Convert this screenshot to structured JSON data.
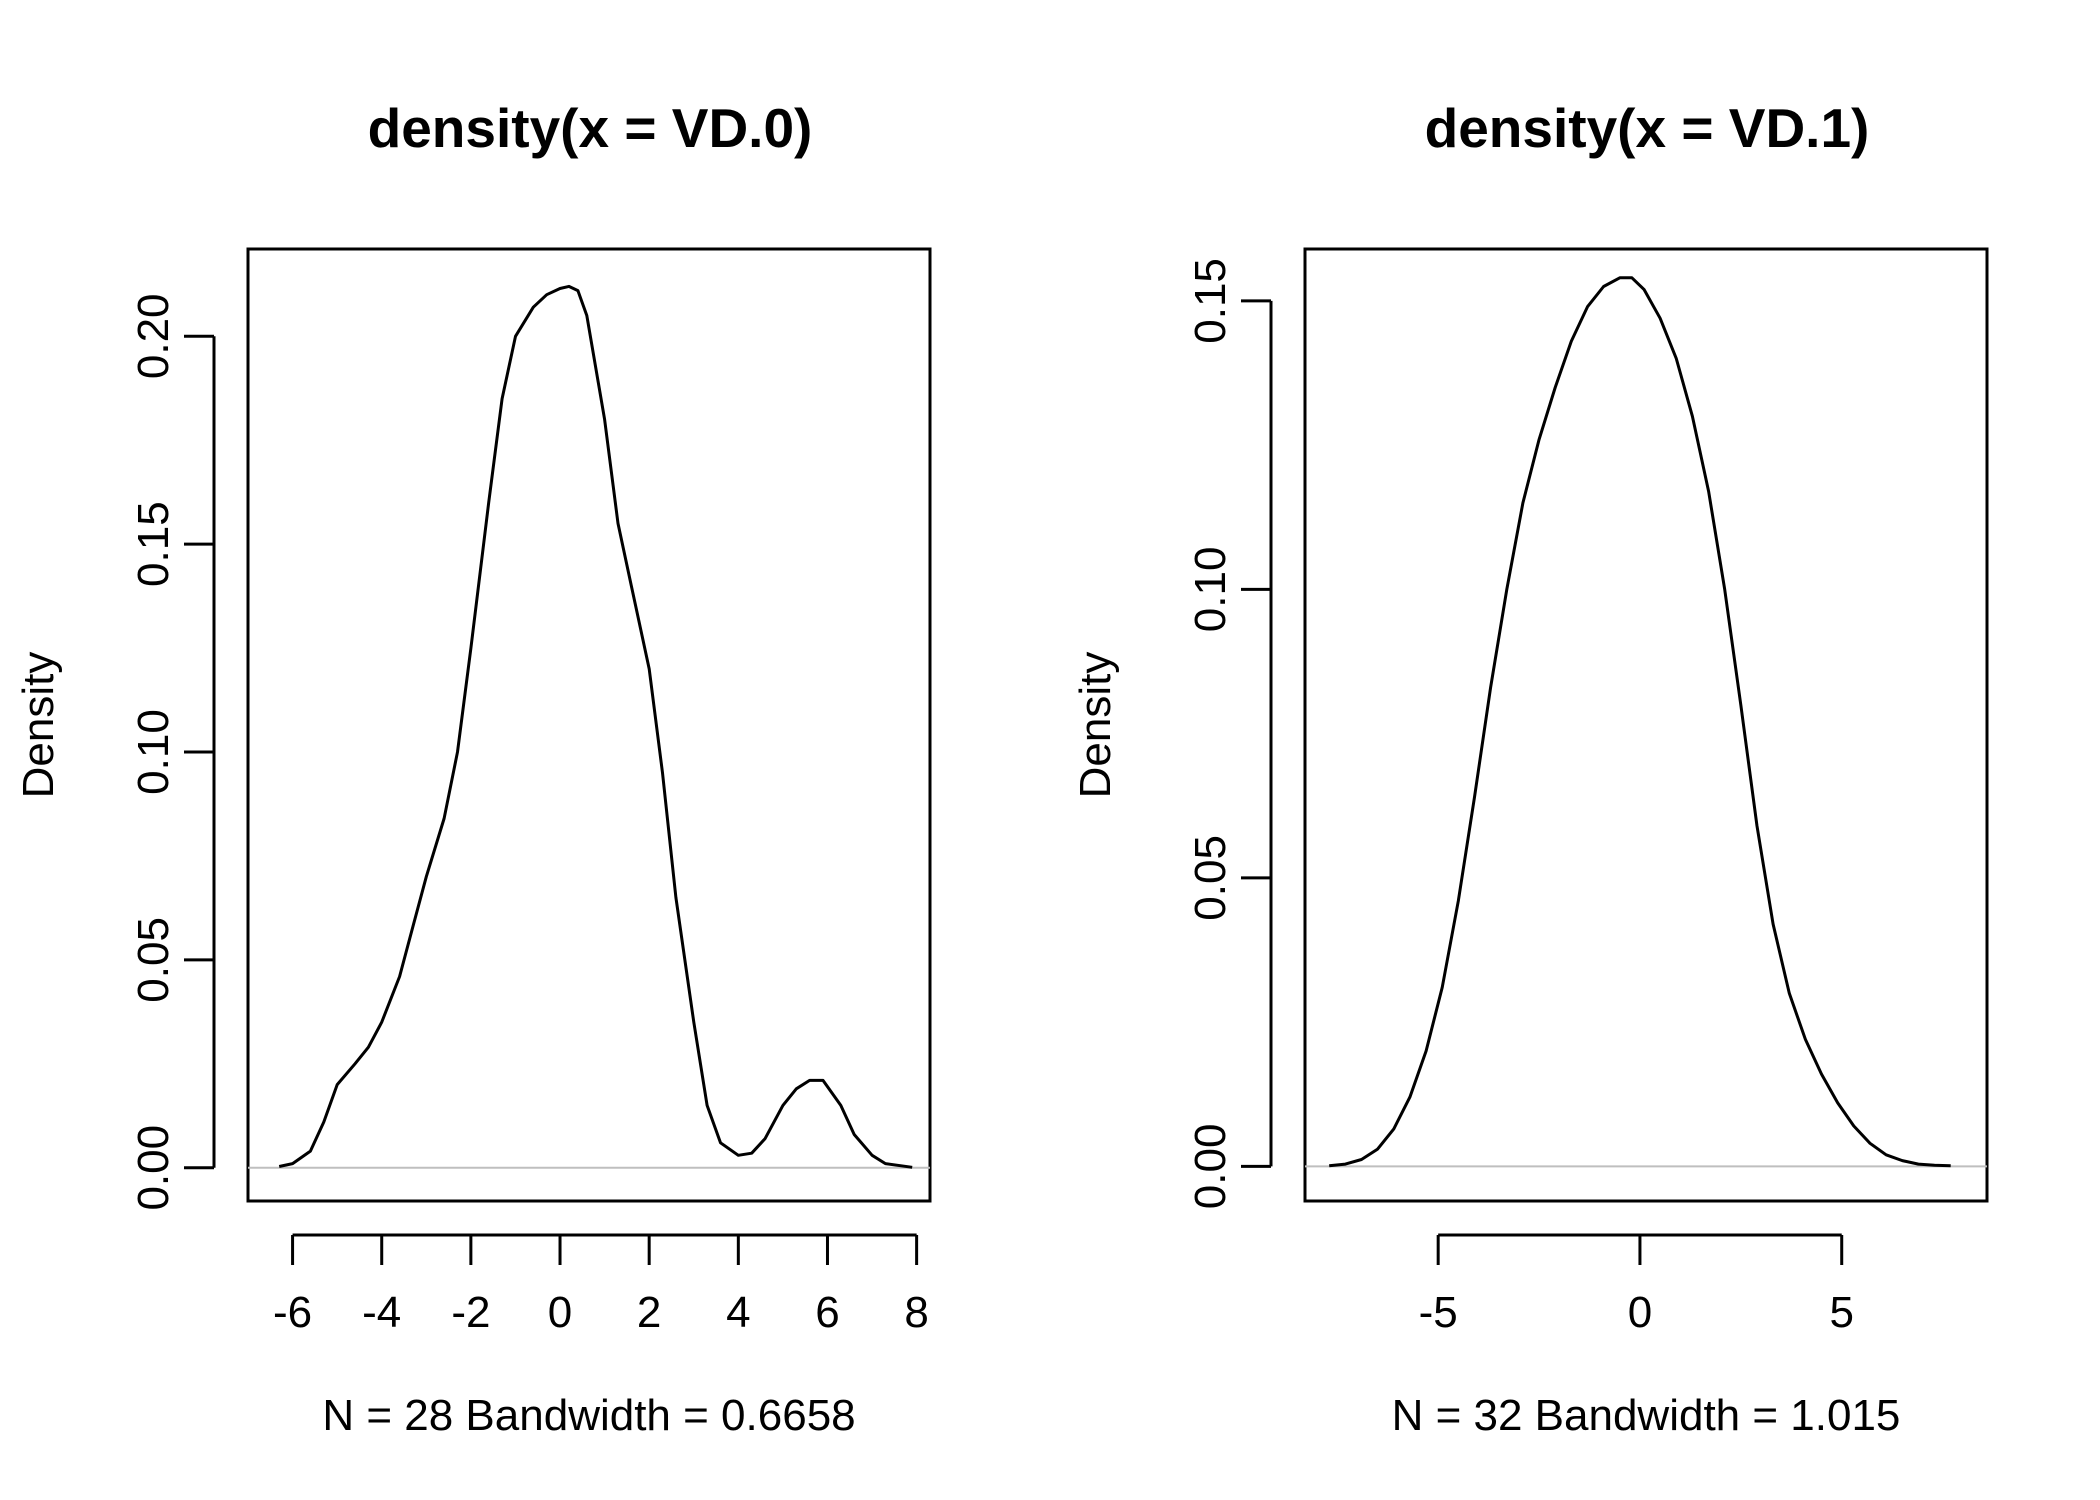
{
  "chart_data": [
    {
      "type": "line",
      "title": "density(x = VD.0)",
      "xlabel": "N = 28   Bandwidth = 0.6658",
      "ylabel": "Density",
      "xlim": [
        -7.0,
        8.3
      ],
      "ylim": [
        -0.008,
        0.221
      ],
      "xticks": [
        -6,
        -4,
        -2,
        0,
        2,
        4,
        6,
        8
      ],
      "xtick_labels": [
        "-6",
        "-4",
        "-2",
        "0",
        "2",
        "4",
        "6",
        "8"
      ],
      "yticks": [
        0.0,
        0.05,
        0.1,
        0.15,
        0.2
      ],
      "ytick_labels": [
        "0.00",
        "0.05",
        "0.10",
        "0.15",
        "0.20"
      ],
      "zero_line": true,
      "grid": false,
      "series": [
        {
          "x": [
            -6.3,
            -6.0,
            -5.6,
            -5.3,
            -5.0,
            -4.6,
            -4.3,
            -4.0,
            -3.6,
            -3.3,
            -3.0,
            -2.6,
            -2.3,
            -2.0,
            -1.6,
            -1.3,
            -1.0,
            -0.6,
            -0.3,
            0.0,
            0.2,
            0.4,
            0.6,
            1.0,
            1.3,
            1.6,
            2.0,
            2.3,
            2.6,
            3.0,
            3.3,
            3.6,
            4.0,
            4.3,
            4.6,
            5.0,
            5.3,
            5.6,
            5.9,
            6.3,
            6.6,
            7.0,
            7.3,
            7.9
          ],
          "y": [
            0.0003,
            0.001,
            0.004,
            0.011,
            0.02,
            0.025,
            0.029,
            0.035,
            0.046,
            0.058,
            0.07,
            0.084,
            0.1,
            0.125,
            0.16,
            0.185,
            0.2,
            0.207,
            0.21,
            0.2115,
            0.212,
            0.211,
            0.205,
            0.18,
            0.155,
            0.14,
            0.12,
            0.095,
            0.065,
            0.035,
            0.015,
            0.006,
            0.003,
            0.0035,
            0.007,
            0.015,
            0.019,
            0.021,
            0.021,
            0.015,
            0.008,
            0.003,
            0.001,
            0.0001
          ]
        }
      ]
    },
    {
      "type": "line",
      "title": "density(x = VD.1)",
      "xlabel": "N = 32   Bandwidth = 1.015",
      "ylabel": "Density",
      "xlim": [
        -8.3,
        8.6
      ],
      "ylim": [
        -0.006,
        0.159
      ],
      "xticks": [
        -5,
        0,
        5
      ],
      "xtick_labels": [
        "-5",
        "0",
        "5"
      ],
      "yticks": [
        0.0,
        0.05,
        0.1,
        0.15
      ],
      "ytick_labels": [
        "0.00",
        "0.05",
        "0.10",
        "0.15"
      ],
      "zero_line": true,
      "grid": false,
      "series": [
        {
          "x": [
            -7.7,
            -7.3,
            -6.9,
            -6.5,
            -6.1,
            -5.7,
            -5.3,
            -4.9,
            -4.5,
            -4.1,
            -3.7,
            -3.3,
            -2.9,
            -2.5,
            -2.1,
            -1.7,
            -1.3,
            -0.9,
            -0.5,
            -0.2,
            0.1,
            0.5,
            0.9,
            1.3,
            1.7,
            2.1,
            2.5,
            2.9,
            3.3,
            3.7,
            4.1,
            4.5,
            4.9,
            5.3,
            5.7,
            6.1,
            6.5,
            6.9,
            7.3,
            7.7
          ],
          "y": [
            0.0001,
            0.0004,
            0.0012,
            0.003,
            0.0065,
            0.012,
            0.02,
            0.031,
            0.046,
            0.064,
            0.083,
            0.1,
            0.115,
            0.126,
            0.135,
            0.143,
            0.149,
            0.1525,
            0.154,
            0.154,
            0.152,
            0.147,
            0.14,
            0.13,
            0.117,
            0.1,
            0.08,
            0.059,
            0.042,
            0.03,
            0.022,
            0.016,
            0.011,
            0.007,
            0.004,
            0.002,
            0.001,
            0.0004,
            0.0002,
            0.0001
          ]
        }
      ]
    }
  ]
}
